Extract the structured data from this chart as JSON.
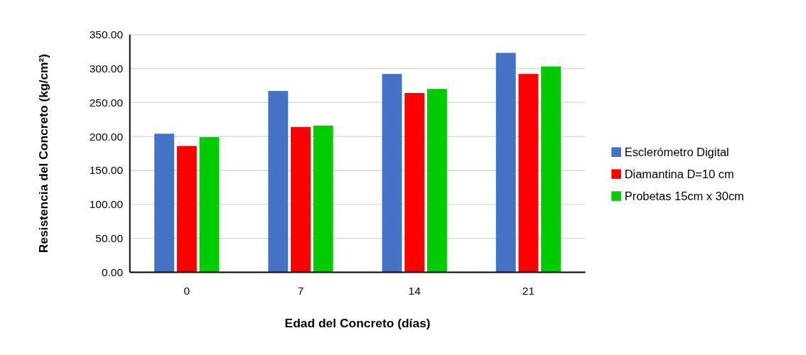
{
  "chart_data": {
    "type": "bar",
    "xlabel": "Edad del Concreto (días)",
    "ylabel": "Resistencia del Concreto (kg/cm²)",
    "categories": [
      "0",
      "7",
      "14",
      "21"
    ],
    "series": [
      {
        "name": "Esclerómetro Digital",
        "color": "#4472c4",
        "values": [
          204,
          267,
          292,
          323
        ]
      },
      {
        "name": "Diamantina D=10 cm",
        "color": "#ff0000",
        "values": [
          186,
          214,
          264,
          292
        ]
      },
      {
        "name": "Probetas 15cm x 30cm",
        "color": "#00cc00",
        "values": [
          199,
          216,
          270,
          303
        ]
      }
    ],
    "ylim": [
      0,
      350
    ],
    "yticks": [
      {
        "value": 0,
        "label": "0.00"
      },
      {
        "value": 50,
        "label": "50.00"
      },
      {
        "value": 100,
        "label": "100.00"
      },
      {
        "value": 150,
        "label": "150.00"
      },
      {
        "value": 200,
        "label": "200.00"
      },
      {
        "value": 250,
        "label": "250.00"
      },
      {
        "value": 300,
        "label": "300.00"
      },
      {
        "value": 350,
        "label": "350.00"
      }
    ],
    "grid": "y",
    "legend": "right"
  }
}
